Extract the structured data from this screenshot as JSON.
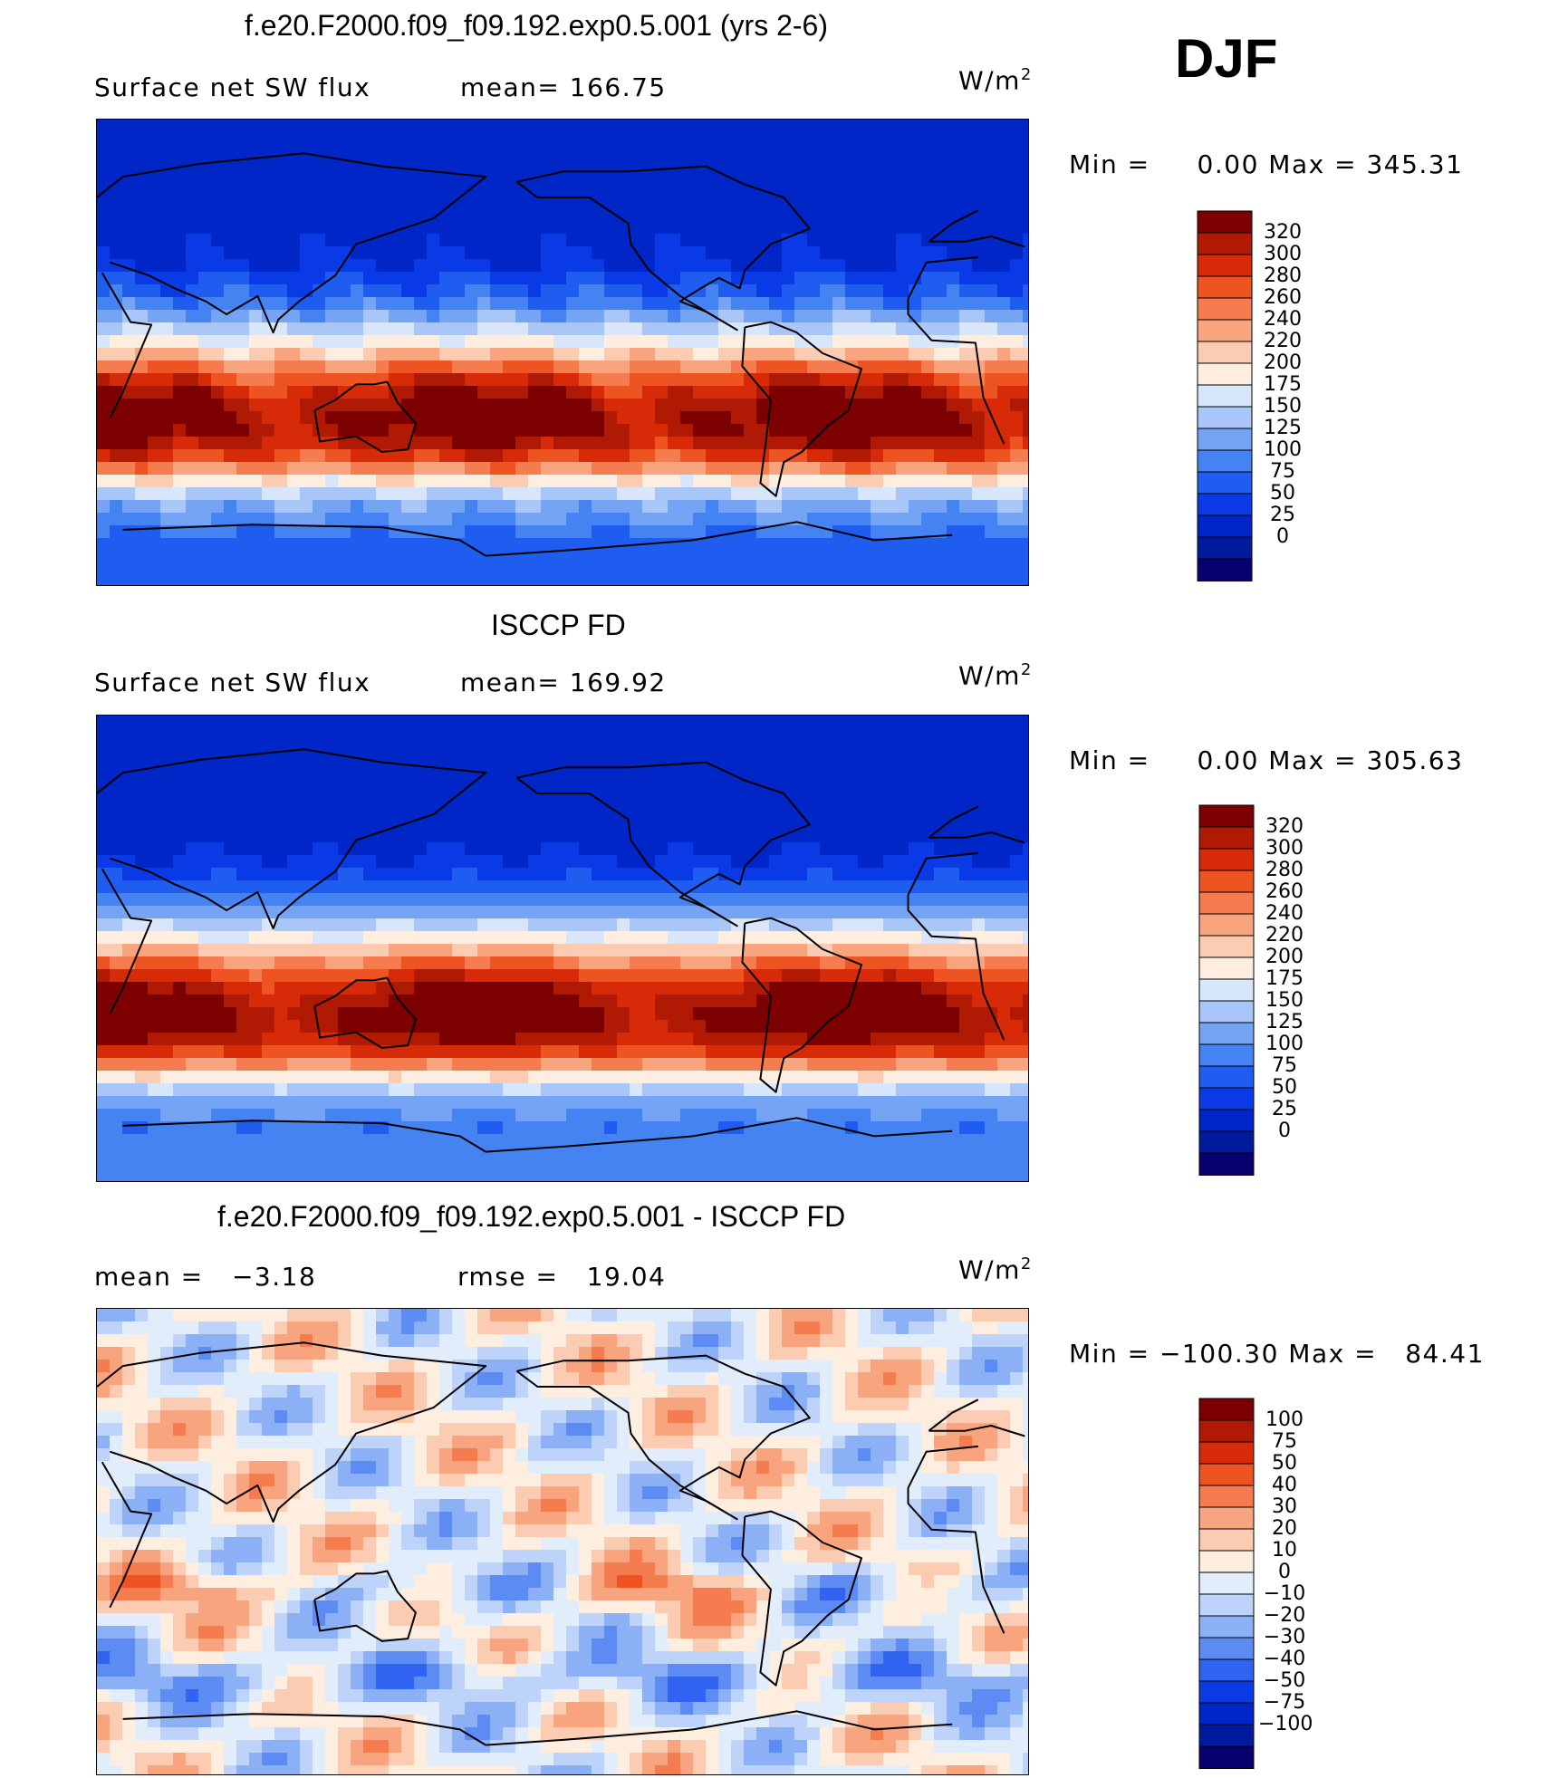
{
  "season": "DJF",
  "panels": [
    {
      "title": "f.e20.F2000.f09_f09.192.exp0.5.001 (yrs 2-6)",
      "left_label": "Surface net SW flux",
      "mid_label": "mean= 166.75",
      "units_base": "W/m",
      "units_sup": "2",
      "minmax": "Min =     0.00 Max = 345.31",
      "colorbar_ticks": [
        "320",
        "300",
        "280",
        "260",
        "240",
        "220",
        "200",
        "175",
        "150",
        "125",
        "100",
        "75",
        "50",
        "25",
        "0"
      ],
      "mean_value": 166.75
    },
    {
      "title": "ISCCP FD",
      "left_label": "Surface net SW flux",
      "mid_label": "mean= 169.92",
      "units_base": "W/m",
      "units_sup": "2",
      "minmax": "Min =     0.00 Max = 305.63",
      "colorbar_ticks": [
        "320",
        "300",
        "280",
        "260",
        "240",
        "220",
        "200",
        "175",
        "150",
        "125",
        "100",
        "75",
        "50",
        "25",
        "0"
      ],
      "mean_value": 169.92
    },
    {
      "title": "f.e20.F2000.f09_f09.192.exp0.5.001 - ISCCP FD",
      "left_label": "mean =   −3.18",
      "mid_label": "rmse =   19.04",
      "units_base": "W/m",
      "units_sup": "2",
      "minmax": "Min = −100.30 Max =   84.41",
      "colorbar_ticks": [
        "100",
        "75",
        "50",
        "40",
        "30",
        "20",
        "10",
        "0",
        "−10",
        "−20",
        "−30",
        "−40",
        "−50",
        "−75",
        "−100"
      ],
      "mean_value": -3.18,
      "rmse_value": 19.04
    }
  ],
  "colors": {
    "abs_scale": [
      "#08006e",
      "#001a9e",
      "#0026c8",
      "#0a3ae6",
      "#1f5cf0",
      "#4582f2",
      "#76a4f5",
      "#a9c6f8",
      "#d8e6fb",
      "#fdeee0",
      "#fbcbb2",
      "#f8a47f",
      "#f57c4f",
      "#ee5422",
      "#d62a08",
      "#b01a04",
      "#7c0000"
    ],
    "diff_scale": [
      "#08006e",
      "#001a9e",
      "#0026c8",
      "#0a3ae6",
      "#2f63f0",
      "#5b8bf3",
      "#8cb0f6",
      "#bdd3fa",
      "#e2edfc",
      "#fdeee0",
      "#fbcbb2",
      "#f8a47f",
      "#f57c4f",
      "#ee5422",
      "#d62a08",
      "#b01a04",
      "#7c0000"
    ]
  }
}
